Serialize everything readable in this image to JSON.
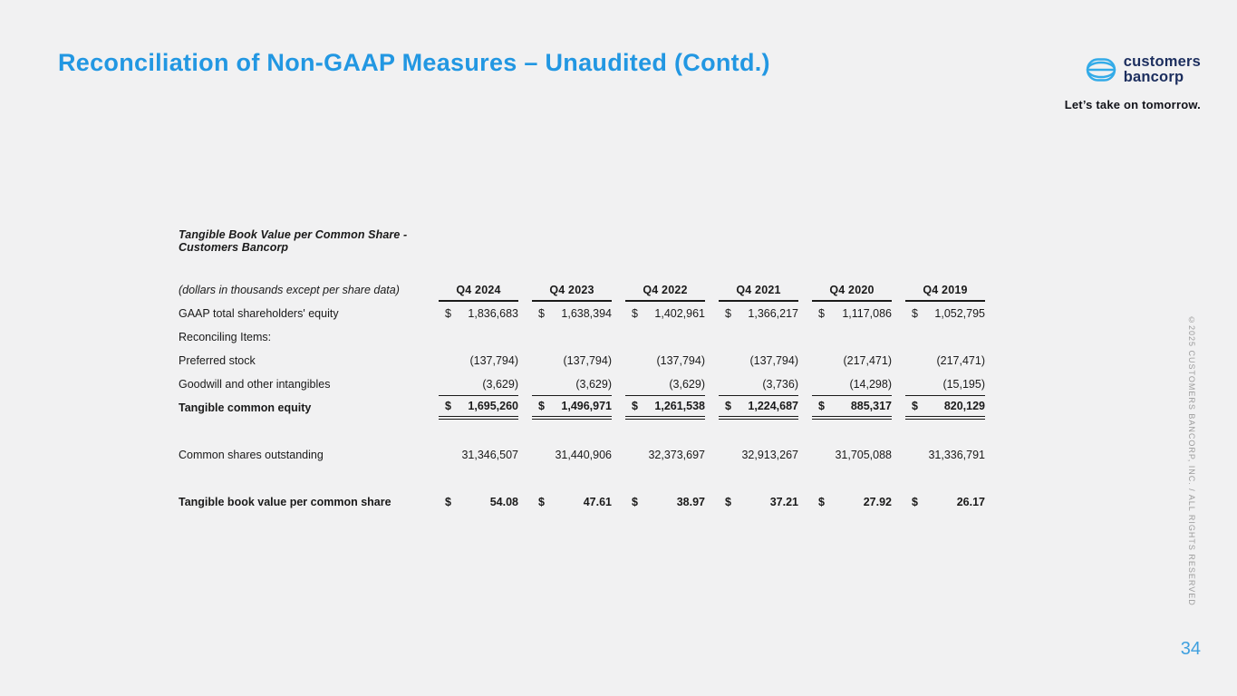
{
  "slide": {
    "title": "Reconciliation of Non-GAAP Measures – Unaudited (Contd.)",
    "page_number": "34",
    "copyright": "©2025 CUSTOMERS BANCORP, INC. / ALL RIGHTS RESERVED"
  },
  "logo": {
    "icon_name": "customers-bancorp-roundel-icon",
    "line1": "customers",
    "line2": "bancorp",
    "tagline": "Let’s take on tomorrow."
  },
  "colors": {
    "accent_blue": "#2297E2",
    "page_number_blue": "#3FA0DF",
    "logo_navy": "#1C2E5E",
    "logo_icon_blue": "#33ABE8",
    "background": "#F1F1F2",
    "text": "#1A1A1A",
    "copyright_gray": "#9B9B9B"
  },
  "table": {
    "title_line1": "Tangible Book Value per Common Share -",
    "title_line2": "Customers Bancorp",
    "note": "(dollars in thousands except per share data)",
    "columns": [
      "Q4 2024",
      "Q4 2023",
      "Q4 2022",
      "Q4 2021",
      "Q4 2020",
      "Q4 2019"
    ],
    "rows": [
      {
        "label": "GAAP total shareholders' equity",
        "dollar": true,
        "values": [
          "1,836,683",
          "1,638,394",
          "1,402,961",
          "1,366,217",
          "1,117,086",
          "1,052,795"
        ]
      },
      {
        "label": "Reconciling Items:",
        "values": []
      },
      {
        "label": "Preferred stock",
        "values": [
          "(137,794)",
          "(137,794)",
          "(137,794)",
          "(137,794)",
          "(217,471)",
          "(217,471)"
        ]
      },
      {
        "label": "Goodwill and other intangibles",
        "underline": true,
        "values": [
          "(3,629)",
          "(3,629)",
          "(3,629)",
          "(3,736)",
          "(14,298)",
          "(15,195)"
        ]
      },
      {
        "label": "Tangible common equity",
        "bold": true,
        "dollar": true,
        "double_underline": true,
        "values": [
          "1,695,260",
          "1,496,971",
          "1,261,538",
          "1,224,687",
          "885,317",
          "820,129"
        ]
      },
      {
        "label": "Common shares outstanding",
        "spacer_before": true,
        "values": [
          "31,346,507",
          "31,440,906",
          "32,373,697",
          "32,913,267",
          "31,705,088",
          "31,336,791"
        ]
      },
      {
        "label": "Tangible book value per common share",
        "bold": true,
        "dollar": true,
        "spacer_before": true,
        "values": [
          "54.08",
          "47.61",
          "38.97",
          "37.21",
          "27.92",
          "26.17"
        ]
      }
    ]
  }
}
